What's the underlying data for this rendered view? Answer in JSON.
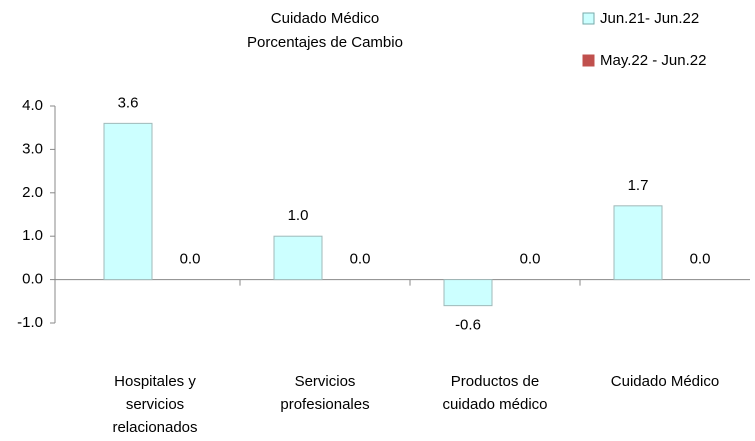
{
  "chart_data": {
    "type": "bar",
    "title": "Cuidado Médico",
    "subtitle": "Porcentajes de Cambio",
    "categories": [
      "Hospitales y servicios relacionados",
      "Servicios profesionales",
      "Productos de cuidado médico",
      "Cuidado Médico"
    ],
    "series": [
      {
        "name": "Jun.21- Jun.22",
        "color": "#ccffff",
        "values": [
          3.6,
          1.0,
          -0.6,
          1.7
        ],
        "value_labels": [
          "3.6",
          "1.0",
          "-0.6",
          "1.7"
        ]
      },
      {
        "name": "May.22 - Jun.22",
        "color": "#c0504d",
        "values": [
          0.0,
          0.0,
          0.0,
          0.0
        ],
        "value_labels": [
          "0.0",
          "0.0",
          "0.0",
          "0.0"
        ]
      }
    ],
    "ylim": [
      -1,
      4
    ],
    "yticks": [
      {
        "value": -1,
        "label": "-1.0"
      },
      {
        "value": 0,
        "label": "0.0"
      },
      {
        "value": 1,
        "label": "1.0"
      },
      {
        "value": 2,
        "label": "2.0"
      },
      {
        "value": 3,
        "label": "3.0"
      },
      {
        "value": 4,
        "label": "4.0"
      }
    ],
    "legend": "top-right"
  }
}
